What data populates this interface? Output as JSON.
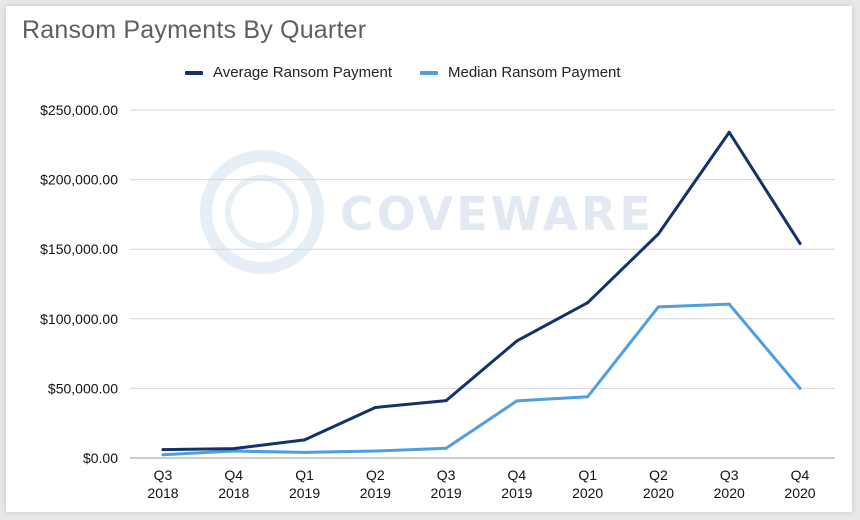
{
  "title": "Ransom Payments By Quarter",
  "watermark": "COVEWARE",
  "colors": {
    "average": "#10336b",
    "median": "#4f9ee0",
    "grid": "#d6d6d6"
  },
  "chart_data": {
    "type": "line",
    "title": "Ransom Payments By Quarter",
    "categories": [
      "Q3 2018",
      "Q4 2018",
      "Q1 2019",
      "Q2 2019",
      "Q3 2019",
      "Q4 2019",
      "Q1 2020",
      "Q2 2020",
      "Q3 2020",
      "Q4 2020"
    ],
    "category_lines": [
      [
        "Q3",
        "2018"
      ],
      [
        "Q4",
        "2018"
      ],
      [
        "Q1",
        "2019"
      ],
      [
        "Q2",
        "2019"
      ],
      [
        "Q3",
        "2019"
      ],
      [
        "Q4",
        "2019"
      ],
      [
        "Q1",
        "2020"
      ],
      [
        "Q2",
        "2020"
      ],
      [
        "Q3",
        "2020"
      ],
      [
        "Q4",
        "2020"
      ]
    ],
    "series": [
      {
        "name": "Average Ransom Payment",
        "values": [
          6000,
          6700,
          13000,
          36300,
          41200,
          84100,
          111600,
          161000,
          234000,
          154100
        ]
      },
      {
        "name": "Median Ransom Payment",
        "values": [
          2300,
          5000,
          4000,
          5000,
          7000,
          41000,
          44000,
          108600,
          110500,
          50000
        ]
      }
    ],
    "ylim": [
      0,
      250000
    ],
    "yticks": [
      "$0.00",
      "$50,000.00",
      "$100,000.00",
      "$150,000.00",
      "$200,000.00",
      "$250,000.00"
    ],
    "ytick_values": [
      0,
      50000,
      100000,
      150000,
      200000,
      250000
    ],
    "grid": true,
    "legend": "top-center"
  }
}
